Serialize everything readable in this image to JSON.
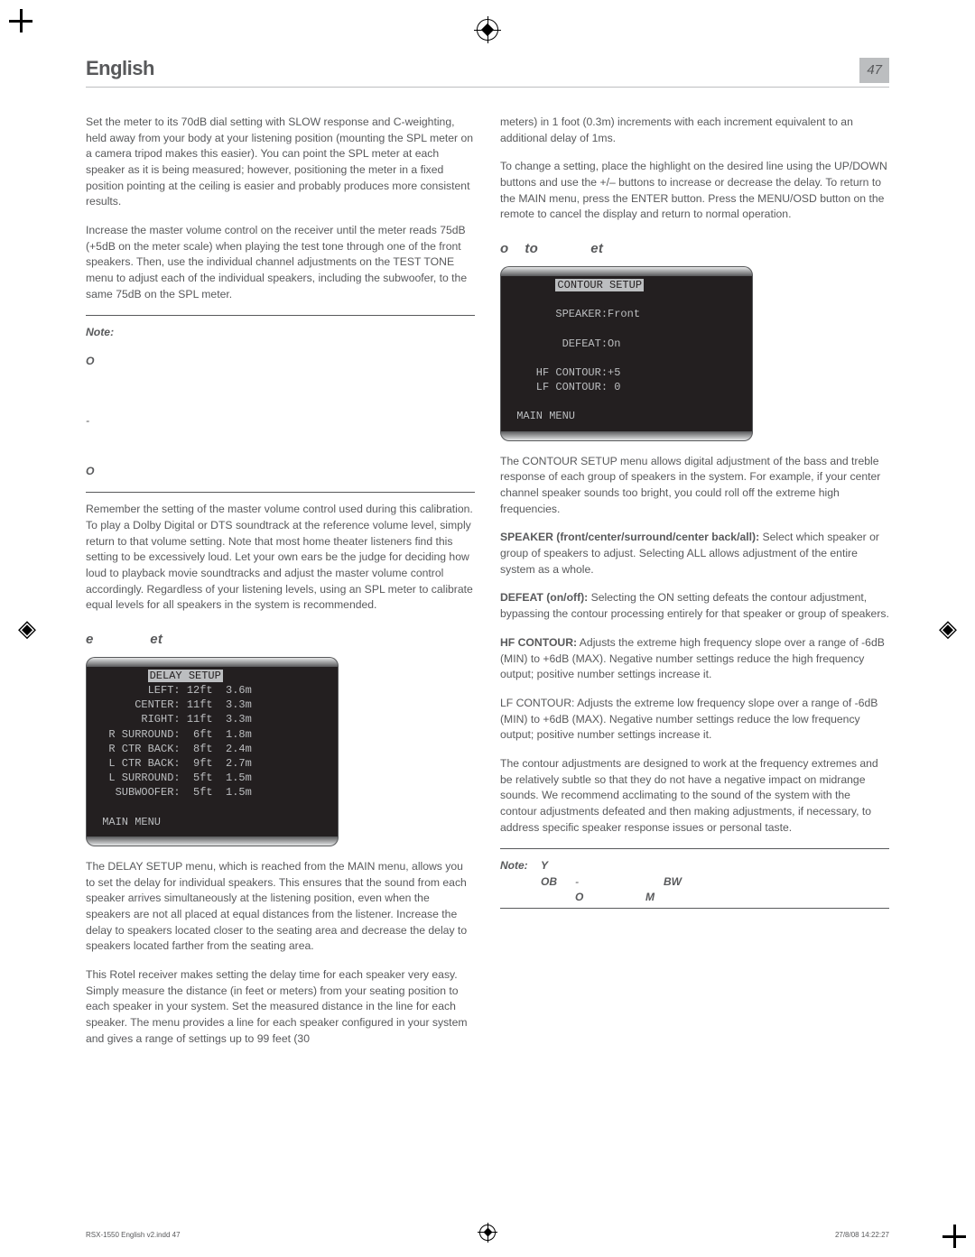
{
  "header": {
    "title": "English",
    "page_number": "47"
  },
  "left": {
    "p1": "Set the meter to its 70dB dial setting with SLOW response and C-weighting, held away from your body at your listening position (mounting the SPL meter on a camera tripod makes this easier). You can point the SPL meter at each speaker as it is being measured; however, positioning the meter in a fixed position pointing at the ceiling is easier and probably produces more consistent results.",
    "p2": "Increase the master volume control on the receiver until the meter reads 75dB (+5dB on the meter scale) when playing the test tone through one of the front speakers. Then, use the individual channel adjustments on the TEST TONE menu to adjust each of the individual speakers, including the subwoofer, to the same 75dB on the SPL meter.",
    "note1_label": "Note:",
    "note1_o1": "O",
    "note1_dash": "-",
    "note1_o2": "O",
    "p3": "Remember the setting of the master volume control used during this calibration. To play a Dolby Digital or DTS soundtrack at the reference volume level, simply return to that volume setting. Note that most home theater listeners find this setting to be excessively loud. Let your own ears be the judge for deciding how loud to playback movie soundtracks and adjust the master volume control accordingly. Regardless of your listening levels, using an SPL meter to calibrate equal levels for all speakers in the system is recommended.",
    "delay_head_e": "e",
    "delay_head_et": "et",
    "delay_lcd": {
      "title": "DELAY SETUP",
      "rows": [
        {
          "label": "LEFT:",
          "ft": "12ft",
          "m": "3.6m"
        },
        {
          "label": "CENTER:",
          "ft": "11ft",
          "m": "3.3m"
        },
        {
          "label": "RIGHT:",
          "ft": "11ft",
          "m": "3.3m"
        },
        {
          "label": "R SURROUND:",
          "ft": " 6ft",
          "m": "1.8m"
        },
        {
          "label": "R CTR BACK:",
          "ft": " 8ft",
          "m": "2.4m"
        },
        {
          "label": "L CTR BACK:",
          "ft": " 9ft",
          "m": "2.7m"
        },
        {
          "label": "L SURROUND:",
          "ft": " 5ft",
          "m": "1.5m"
        },
        {
          "label": "SUBWOOFER:",
          "ft": " 5ft",
          "m": "1.5m"
        }
      ],
      "footer": "MAIN MENU"
    },
    "p4": "The DELAY SETUP menu, which is reached from the MAIN menu, allows you to set the delay for individual speakers. This ensures that the sound from each speaker arrives simultaneously at the listening position, even when the speakers are not all placed at equal distances from the listener. Increase the delay to speakers located closer to the seating area and decrease the delay to speakers located farther from the seating area.",
    "p5": "This Rotel receiver makes setting the delay time for each speaker very easy. Simply measure the distance (in feet or meters) from your seating position to each speaker in your system. Set the measured distance in the line for each speaker. The menu provides a line for each speaker configured in your system and gives a range of settings up to 99 feet (30"
  },
  "right": {
    "p1": "meters) in 1 foot (0.3m) increments with each increment equivalent to an additional delay of 1ms.",
    "p2": "To change a setting, place the highlight on the desired line using the UP/DOWN buttons and use the +/– buttons to increase or decrease the delay. To return to the MAIN menu, press the ENTER button. Press the MENU/OSD button on the remote to cancel the display and return to normal operation.",
    "contour_head_o": "o",
    "contour_head_to": "to",
    "contour_head_et": "et",
    "contour_lcd": {
      "title": "CONTOUR SETUP",
      "l1": "SPEAKER:Front",
      "l2": "DEFEAT:On",
      "l3": "HF CONTOUR:+5",
      "l4": "LF CONTOUR: 0",
      "footer": "MAIN MENU"
    },
    "p3": "The CONTOUR SETUP menu allows digital adjustment of the bass and treble response of each group of speakers in the system. For example, if your center channel speaker sounds too bright, you could roll off the extreme high frequencies.",
    "p4_b": "SPEAKER (front/center/surround/center back/all):",
    "p4": " Select which speaker or group of speakers to adjust. Selecting ALL allows adjustment of the entire system as a whole.",
    "p5_b": "DEFEAT (on/off):",
    "p5": " Selecting the ON setting defeats the contour adjustment, bypassing the contour processing entirely for that speaker or group of speakers.",
    "p6_b": "HF CONTOUR:",
    "p6": " Adjusts the extreme high frequency slope over a range of -6dB (MIN) to +6dB (MAX). Negative number settings reduce the high frequency output; positive number settings increase it.",
    "p7": "LF CONTOUR: Adjusts the extreme low frequency slope over a range of -6dB (MIN) to +6dB (MAX). Negative number settings reduce the low frequency output; positive number settings increase it.",
    "p8": "The contour adjustments are designed to work at the frequency extremes and be relatively subtle so that they do not have a negative impact on midrange sounds. We recommend acclimating to the sound of the system with the contour adjustments defeated and then making adjustments, if necessary, to address specific speaker response issues or personal taste.",
    "note_label": "Note:",
    "note_Y": "Y",
    "note_OB": "OB",
    "note_dash": "-",
    "note_BW": "BW",
    "note_O": "O",
    "note_M": "M"
  },
  "footer": {
    "left": "RSX-1550 English v2.indd   47",
    "right": "27/8/08   14:22:27"
  }
}
